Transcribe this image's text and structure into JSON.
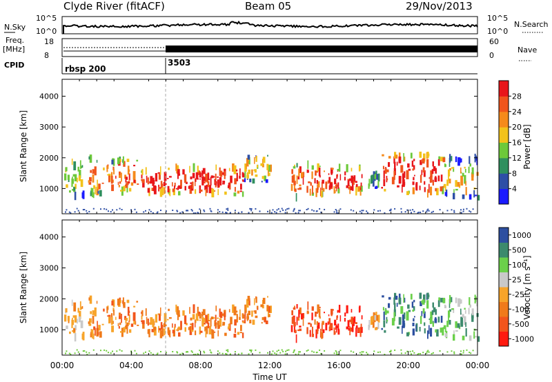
{
  "header": {
    "station": "Clyde River (fitACF)",
    "beam": "Beam 05",
    "date": "29/Nov/2013"
  },
  "top_panels": {
    "nsky_label": "N.Sky",
    "nsky_ticks": [
      "10^5",
      "10^0"
    ],
    "nsearch_label": "N.Search",
    "nsearch_ticks": [
      "10^5",
      "10^0"
    ],
    "freq_label_1": "Freq.",
    "freq_label_2": "[MHz]",
    "freq_ticks": [
      "18",
      "8"
    ],
    "nave_label": "Nave",
    "nave_ticks": [
      "60",
      "0"
    ],
    "cpid_label": "CPID",
    "cpid_segments": [
      {
        "label": "rbsp 200",
        "start_hour": 0
      },
      {
        "label": "3503",
        "start_hour": 6
      }
    ]
  },
  "colors": {
    "power": [
      "#1a1aff",
      "#2e4fa6",
      "#2f8f5e",
      "#6dc93a",
      "#f2c21a",
      "#f58a1b",
      "#f0551c",
      "#e8161a"
    ],
    "velocity": [
      "#ff1a10",
      "#f2551c",
      "#f07a1a",
      "#f7a42a",
      "#c9c9c9",
      "#6bd04a",
      "#3c8a6d",
      "#2d4fa0"
    ]
  },
  "chart_data": [
    {
      "type": "heatmap",
      "name": "power-panel",
      "ylabel": "Slant Range [km]",
      "xlabel": "",
      "xlim": [
        0,
        24
      ],
      "ylim": [
        180,
        4550
      ],
      "x_ticks": [],
      "y_ticks": [
        "1000",
        "2000",
        "3000",
        "4000"
      ],
      "colorbar_label": "Power [dB]",
      "colorbar_ticks": [
        "4",
        "8",
        "12",
        "16",
        "20",
        "24",
        "28"
      ],
      "echo_regions": [
        {
          "t0": 0.1,
          "t1": 1.2,
          "r0": 700,
          "r1": 2050,
          "level": 3
        },
        {
          "t0": 1.5,
          "t1": 3.0,
          "r0": 750,
          "r1": 2000,
          "level": 5
        },
        {
          "t0": 3.0,
          "t1": 4.5,
          "r0": 900,
          "r1": 2000,
          "level": 6
        },
        {
          "t0": 4.5,
          "t1": 6.0,
          "r0": 850,
          "r1": 1600,
          "level": 7
        },
        {
          "t0": 6.0,
          "t1": 10.5,
          "r0": 800,
          "r1": 1700,
          "level": 7
        },
        {
          "t0": 10.5,
          "t1": 12.0,
          "r0": 1200,
          "r1": 2100,
          "level": 4
        },
        {
          "t0": 13.2,
          "t1": 15.2,
          "r0": 700,
          "r1": 1800,
          "level": 6
        },
        {
          "t0": 15.2,
          "t1": 17.3,
          "r0": 900,
          "r1": 1700,
          "level": 7
        },
        {
          "t0": 17.6,
          "t1": 18.3,
          "r0": 1000,
          "r1": 1600,
          "level": 2
        },
        {
          "t0": 18.4,
          "t1": 22.0,
          "r0": 800,
          "r1": 2100,
          "level": 7
        },
        {
          "t0": 22.0,
          "t1": 24.0,
          "r0": 700,
          "r1": 2000,
          "level": 4
        }
      ]
    },
    {
      "type": "heatmap",
      "name": "velocity-panel",
      "ylabel": "Slant Range [km]",
      "xlabel": "Time UT",
      "xlim": [
        0,
        24
      ],
      "ylim": [
        180,
        4550
      ],
      "x_ticks": [
        "00:00",
        "04:00",
        "08:00",
        "12:00",
        "16:00",
        "20:00",
        "00:00"
      ],
      "y_ticks": [
        "1000",
        "2000",
        "3000",
        "4000"
      ],
      "colorbar_label": "Velocity [m s⁻¹]",
      "colorbar_ticks": [
        "1000",
        "500",
        "100",
        "25",
        "-25",
        "-100",
        "-500",
        "-1000"
      ],
      "echo_regions": [
        {
          "t0": 0.1,
          "t1": 1.2,
          "r0": 700,
          "r1": 2050,
          "level": 3
        },
        {
          "t0": 1.5,
          "t1": 3.0,
          "r0": 750,
          "r1": 2000,
          "level": 2
        },
        {
          "t0": 3.0,
          "t1": 4.5,
          "r0": 900,
          "r1": 2000,
          "level": 2
        },
        {
          "t0": 4.5,
          "t1": 6.0,
          "r0": 850,
          "r1": 1600,
          "level": 2
        },
        {
          "t0": 6.0,
          "t1": 10.5,
          "r0": 800,
          "r1": 1700,
          "level": 2
        },
        {
          "t0": 10.5,
          "t1": 12.0,
          "r0": 1200,
          "r1": 2100,
          "level": 2
        },
        {
          "t0": 13.2,
          "t1": 15.2,
          "r0": 700,
          "r1": 1800,
          "level": 1
        },
        {
          "t0": 15.2,
          "t1": 17.3,
          "r0": 900,
          "r1": 1700,
          "level": 0
        },
        {
          "t0": 17.6,
          "t1": 18.3,
          "r0": 1000,
          "r1": 1600,
          "level": 3
        },
        {
          "t0": 18.4,
          "t1": 22.0,
          "r0": 800,
          "r1": 2100,
          "level": 6
        },
        {
          "t0": 22.0,
          "t1": 24.0,
          "r0": 700,
          "r1": 2000,
          "level": 5
        }
      ]
    }
  ]
}
